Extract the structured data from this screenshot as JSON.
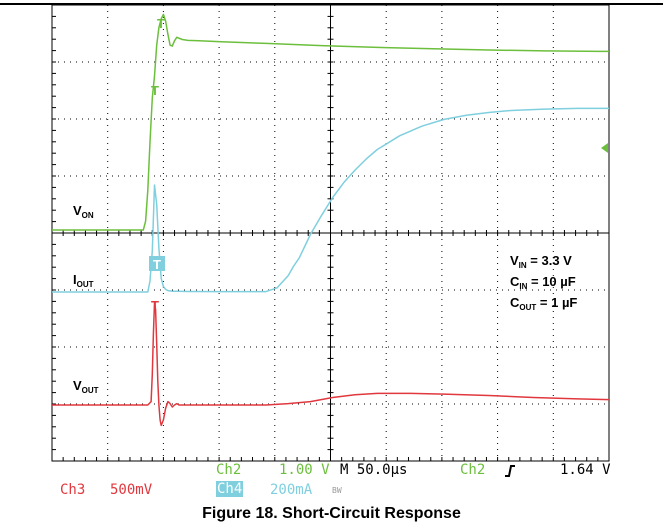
{
  "chart_data": {
    "type": "line",
    "title": "Figure 18. Short-Circuit Response",
    "time_per_div_us": 50,
    "x_unit": "µs",
    "x_range_us": [
      -92,
      408
    ],
    "trigger_time_us": 0,
    "series": [
      {
        "name": "V_ON",
        "channel": "Ch2",
        "color": "#6cbf3c",
        "scale": "1.00 V/div",
        "x": [
          -92,
          -10,
          -8,
          -6,
          -4,
          -2,
          0,
          2,
          4,
          6,
          8,
          10,
          12,
          14,
          16,
          18,
          20,
          25,
          30,
          40,
          60,
          100,
          150,
          200,
          250,
          300,
          350,
          400,
          408
        ],
        "y": [
          0.0,
          0.0,
          0.2,
          0.9,
          2.0,
          3.0,
          3.5,
          4.2,
          4.6,
          4.8,
          4.9,
          4.75,
          4.45,
          4.2,
          4.18,
          4.3,
          4.38,
          4.33,
          4.31,
          4.3,
          4.28,
          4.24,
          4.19,
          4.15,
          4.12,
          4.09,
          4.07,
          4.06,
          4.06
        ]
      },
      {
        "name": "I_OUT",
        "channel": "Ch4",
        "color": "#7fcfdf",
        "scale": "200mA/div",
        "x": [
          -92,
          -6,
          -4,
          -2,
          0,
          2,
          4,
          6,
          8,
          10,
          12,
          14,
          16,
          20,
          30,
          60,
          100,
          110,
          120,
          125,
          130,
          140,
          150,
          160,
          170,
          180,
          190,
          200,
          220,
          240,
          260,
          280,
          300,
          320,
          350,
          380,
          408
        ],
        "y": [
          0,
          0,
          80,
          300,
          780,
          640,
          320,
          100,
          40,
          20,
          10,
          8,
          6,
          5,
          4,
          3,
          3,
          30,
          120,
          190,
          250,
          420,
          560,
          690,
          800,
          890,
          970,
          1040,
          1140,
          1210,
          1260,
          1290,
          1310,
          1325,
          1335,
          1340,
          1340
        ]
      },
      {
        "name": "V_OUT",
        "channel": "Ch3",
        "color": "#e0383e",
        "scale": "500mV/div",
        "x": [
          -92,
          -6,
          -3,
          -2,
          -1,
          0,
          1,
          2,
          3,
          4,
          5,
          6,
          8,
          10,
          12,
          14,
          16,
          18,
          20,
          22,
          25,
          30,
          40,
          60,
          100,
          120,
          140,
          160,
          180,
          200,
          230,
          260,
          300,
          340,
          380,
          408
        ],
        "y": [
          0.0,
          0.0,
          0.05,
          0.45,
          1.05,
          1.5,
          1.4,
          0.9,
          0.35,
          0.0,
          -0.22,
          -0.3,
          -0.22,
          -0.05,
          0.05,
          0.02,
          -0.03,
          0.0,
          0.02,
          0.0,
          0.0,
          0.0,
          0.0,
          0.0,
          0.0,
          0.02,
          0.05,
          0.11,
          0.15,
          0.17,
          0.17,
          0.16,
          0.14,
          0.11,
          0.09,
          0.08
        ]
      }
    ],
    "annotations": {
      "conditions": [
        "V_IN = 3.3 V",
        "C_IN = 10 µF",
        "C_OUT = 1 µF"
      ],
      "trace_labels": [
        "V_ON",
        "I_OUT",
        "V_OUT"
      ]
    },
    "grid": true,
    "grid_divisions": [
      10,
      8
    ]
  },
  "labels": {
    "von": {
      "main": "V",
      "sub": "ON"
    },
    "iout": {
      "main": "I",
      "sub": "OUT"
    },
    "vout": {
      "main": "V",
      "sub": "OUT"
    },
    "vin": {
      "main": "V",
      "sub": "IN",
      "rest": " = 3.3 V"
    },
    "cin": {
      "main": "C",
      "sub": "IN",
      "rest": " = 10 µF"
    },
    "cout": {
      "main": "C",
      "sub": "OUT",
      "rest": " = 1 µF"
    }
  },
  "readout": {
    "ch3_name": "Ch3",
    "ch3_scale": "500mV",
    "ch2_name": "Ch2",
    "ch2_scale": "1.00 V",
    "ch4_name": "Ch4",
    "ch4_scale": "200mA",
    "bw": "BW",
    "timebase": "M 50.0µs",
    "trigger_source": "Ch2",
    "trigger_level": "1.64 V",
    "trigger_slope_icon": "rising-edge-icon"
  },
  "markers": {
    "trigger": "T"
  },
  "colors": {
    "ch2": "#6cbf3c",
    "ch3": "#e0383e",
    "ch4": "#7fcfdf",
    "grid": "#000000"
  },
  "caption": "Figure 18. Short-Circuit Response"
}
